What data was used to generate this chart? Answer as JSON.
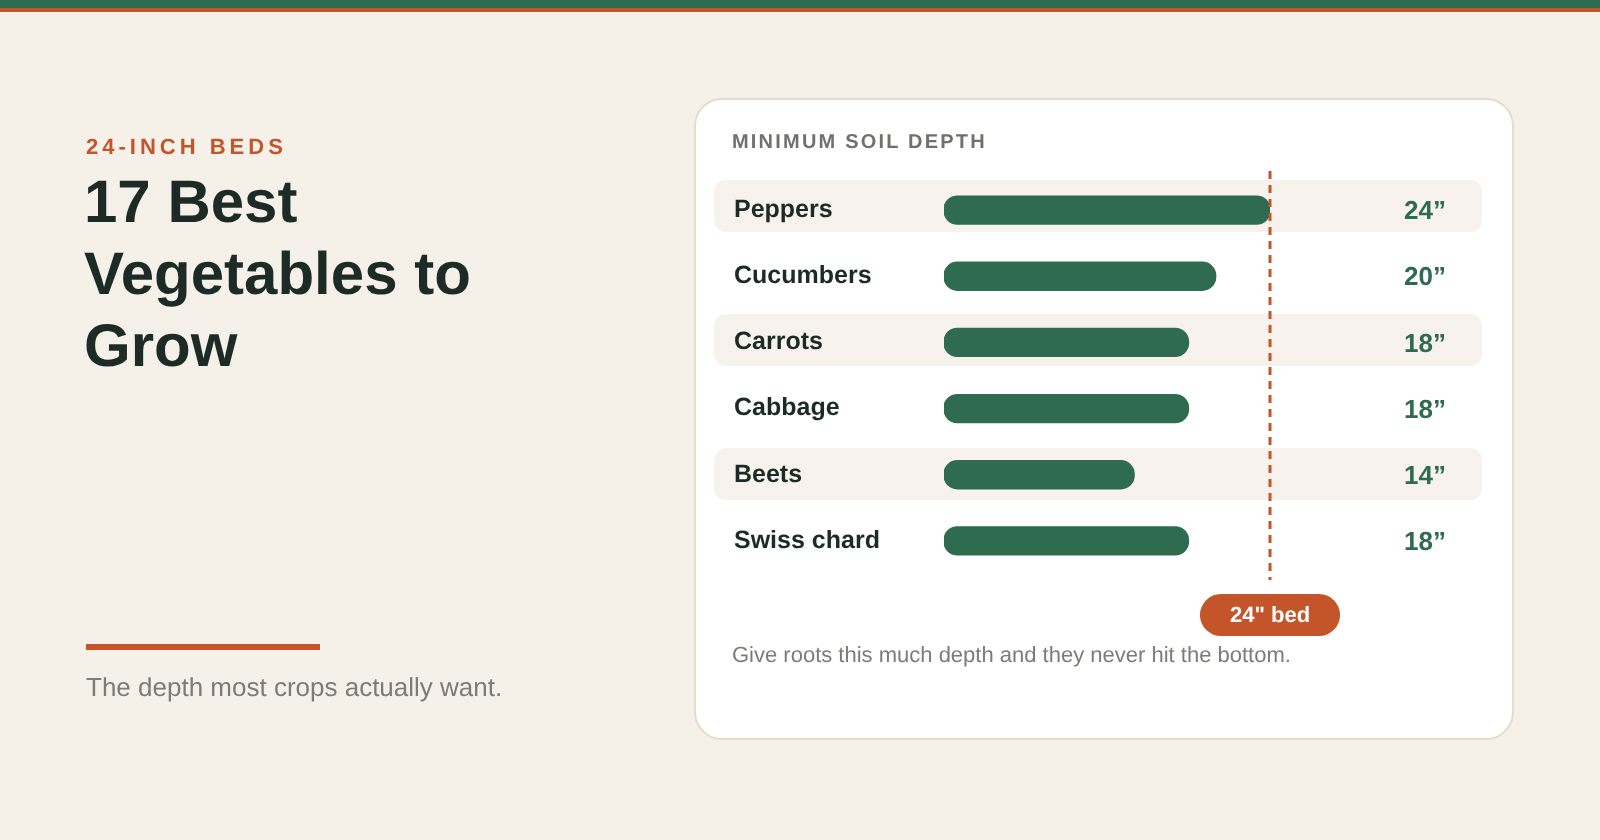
{
  "chart_data": {
    "type": "bar",
    "orientation": "horizontal",
    "title": "17 Best Vegetables to Grow",
    "subtitle": "24-INCH BEDS",
    "annotations": [
      "MINIMUM SOIL DEPTH",
      "The depth most crops actually want.",
      "Give roots this much depth and they never hit the bottom."
    ],
    "categories": [
      "Peppers",
      "Cucumbers",
      "Carrots",
      "Cabbage",
      "Beets",
      "Swiss chard"
    ],
    "values": [
      24,
      20,
      18,
      18,
      14,
      18
    ],
    "value_labels": [
      "24”",
      "20”",
      "18”",
      "18”",
      "14”",
      "18”"
    ],
    "color": "#2e6b4f",
    "xlim": [
      0,
      24
    ],
    "ref_lines": [
      {
        "axis": "x",
        "value": 24,
        "label": "24\" bed",
        "color": "#c4552b",
        "line_style": "dashed"
      }
    ],
    "tick_labels": "y"
  }
}
